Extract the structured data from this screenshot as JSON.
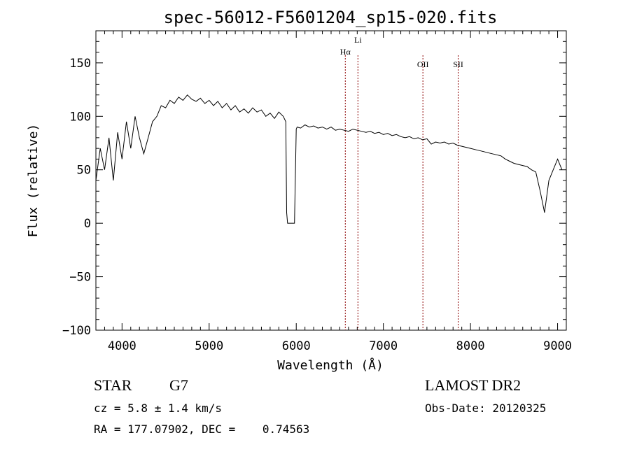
{
  "chart_data": {
    "type": "line",
    "title": "spec-56012-F5601204_sp15-020.fits",
    "xlabel": "Wavelength (Å)",
    "ylabel": "Flux (relative)",
    "xlim": [
      3700,
      9100
    ],
    "ylim": [
      -100,
      180
    ],
    "x_ticks": [
      "4000",
      "5000",
      "6000",
      "7000",
      "8000",
      "9000"
    ],
    "y_ticks": [
      "150",
      "100",
      "50",
      "0",
      "−50",
      "−100"
    ],
    "x_tick_values": [
      4000,
      5000,
      6000,
      7000,
      8000,
      9000
    ],
    "y_tick_values": [
      150,
      100,
      50,
      0,
      -50,
      -100
    ],
    "grid": false,
    "series": [
      {
        "x": [
          3700,
          3750,
          3800,
          3850,
          3900,
          3950,
          4000,
          4050,
          4100,
          4150,
          4200,
          4250,
          4300,
          4350,
          4400,
          4450,
          4500,
          4550,
          4600,
          4650,
          4700,
          4750,
          4800,
          4850,
          4900,
          4950,
          5000,
          5050,
          5100,
          5150,
          5200,
          5250,
          5300,
          5350,
          5400,
          5450,
          5500,
          5550,
          5600,
          5650,
          5700,
          5750,
          5800,
          5850,
          5880,
          5890,
          5900,
          5950,
          5980,
          6000,
          6010,
          6050,
          6100,
          6150,
          6200,
          6250,
          6300,
          6350,
          6400,
          6450,
          6500,
          6550,
          6600,
          6650,
          6700,
          6750,
          6800,
          6850,
          6900,
          6950,
          7000,
          7050,
          7100,
          7150,
          7200,
          7250,
          7300,
          7350,
          7400,
          7450,
          7500,
          7550,
          7600,
          7650,
          7700,
          7750,
          7800,
          7850,
          7900,
          7950,
          8000,
          8050,
          8100,
          8150,
          8200,
          8250,
          8300,
          8350,
          8400,
          8450,
          8500,
          8550,
          8600,
          8650,
          8700,
          8750,
          8800,
          8850,
          8900,
          8950,
          9000,
          9050
        ],
        "y": [
          40,
          70,
          50,
          80,
          40,
          85,
          60,
          95,
          70,
          100,
          80,
          65,
          80,
          95,
          100,
          110,
          108,
          115,
          112,
          118,
          115,
          120,
          116,
          114,
          117,
          112,
          115,
          110,
          114,
          108,
          112,
          106,
          110,
          104,
          107,
          103,
          108,
          104,
          106,
          100,
          103,
          98,
          104,
          100,
          95,
          10,
          0,
          0,
          0,
          88,
          90,
          89,
          92,
          90,
          91,
          89,
          90,
          88,
          90,
          87,
          88,
          87,
          86,
          88,
          87,
          86,
          85,
          86,
          84,
          85,
          83,
          84,
          82,
          83,
          81,
          80,
          81,
          79,
          80,
          78,
          79,
          74,
          76,
          75,
          76,
          74,
          75,
          73,
          72,
          71,
          70,
          69,
          68,
          67,
          66,
          65,
          64,
          63,
          60,
          58,
          56,
          55,
          54,
          53,
          50,
          48,
          30,
          10,
          40,
          50,
          60,
          50
        ]
      }
    ],
    "annotations": [
      {
        "label": "Hα",
        "x": 6563
      },
      {
        "label": "Li",
        "x": 6708
      },
      {
        "label": "OII",
        "x": 7454
      },
      {
        "label": "SII",
        "x": 7859
      }
    ]
  },
  "info": {
    "class": "STAR",
    "subclass": "G7",
    "survey": "LAMOST DR2",
    "cz": "cz = 5.8 ± 1.4 km/s",
    "obs_date": "Obs-Date: 20120325",
    "radec": "RA = 177.07902, DEC =    0.74563"
  },
  "colors": {
    "line": "#000000",
    "annotation": "#8b0000",
    "axis": "#000000"
  }
}
